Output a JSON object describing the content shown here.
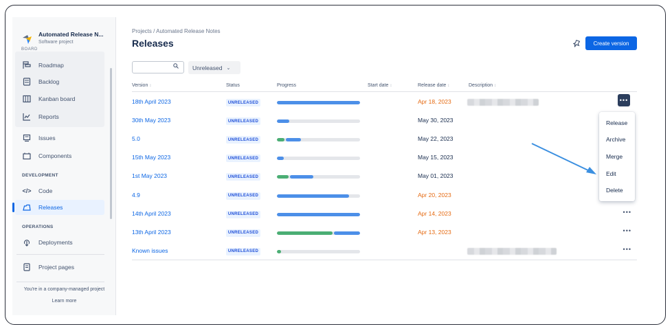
{
  "project": {
    "name": "Automated Release N...",
    "type": "Software project",
    "cut_label": "BOARD"
  },
  "sidebar": {
    "items": [
      {
        "label": "Roadmap",
        "icon": "roadmap-icon"
      },
      {
        "label": "Backlog",
        "icon": "backlog-icon"
      },
      {
        "label": "Kanban board",
        "icon": "board-icon"
      },
      {
        "label": "Reports",
        "icon": "reports-icon"
      },
      {
        "label": "Issues",
        "icon": "issues-icon"
      },
      {
        "label": "Components",
        "icon": "components-icon"
      },
      {
        "label": "Code",
        "icon": "code-icon"
      },
      {
        "label": "Releases",
        "icon": "releases-icon"
      },
      {
        "label": "Deployments",
        "icon": "deployments-icon"
      },
      {
        "label": "Project pages",
        "icon": "pages-icon"
      }
    ],
    "sections": {
      "development": "DEVELOPMENT",
      "operations": "OPERATIONS"
    },
    "footer_text": "You're in a company-managed project",
    "learn_more": "Learn more"
  },
  "header": {
    "breadcrumb": "Projects  /  Automated Release Notes",
    "title": "Releases",
    "create_button": "Create version"
  },
  "filters": {
    "search_value": "",
    "status_filter": "Unreleased"
  },
  "table": {
    "columns": {
      "version": "Version",
      "status": "Status",
      "progress": "Progress",
      "start_date": "Start date",
      "release_date": "Release date",
      "description": "Description"
    },
    "status_label": "UNRELEASED",
    "more_label": "•••",
    "rows": [
      {
        "version": "18th April 2023",
        "release_date": "Apr 18, 2023",
        "overdue": true,
        "done": 0.0,
        "in_progress": 1.0,
        "has_desc": true,
        "desc_width": 0.8
      },
      {
        "version": "30th May 2023",
        "release_date": "May 30, 2023",
        "overdue": false,
        "done": 0.0,
        "in_progress": 0.15,
        "has_desc": false
      },
      {
        "version": "5.0",
        "release_date": "May 22, 2023",
        "overdue": false,
        "done": 0.09,
        "in_progress": 0.2,
        "has_desc": false
      },
      {
        "version": "15th May 2023",
        "release_date": "May 15, 2023",
        "overdue": false,
        "done": 0.0,
        "in_progress": 0.08,
        "has_desc": false
      },
      {
        "version": "1st May 2023",
        "release_date": "May 01, 2023",
        "overdue": false,
        "done": 0.14,
        "in_progress": 0.3,
        "has_desc": false
      },
      {
        "version": "4.9",
        "release_date": "Apr 20, 2023",
        "overdue": true,
        "done": 0.0,
        "in_progress": 0.87,
        "has_desc": false
      },
      {
        "version": "14th April 2023",
        "release_date": "Apr 14, 2023",
        "overdue": true,
        "done": 0.0,
        "in_progress": 1.0,
        "has_desc": false
      },
      {
        "version": "13th April 2023",
        "release_date": "Apr 13, 2023",
        "overdue": true,
        "done": 0.67,
        "in_progress": 0.33,
        "has_desc": false
      },
      {
        "version": "Known issues",
        "release_date": "",
        "overdue": false,
        "done": 0.05,
        "in_progress": 0.0,
        "has_desc": true,
        "desc_width": 1.0
      }
    ]
  },
  "context_menu": {
    "items": [
      "Release",
      "Archive",
      "Merge",
      "Edit",
      "Delete"
    ]
  },
  "colors": {
    "accent": "#0c66e4",
    "done": "#4bae74",
    "in_progress": "#4c8fe8",
    "overdue": "#e56910",
    "track": "#e4e6ea"
  }
}
